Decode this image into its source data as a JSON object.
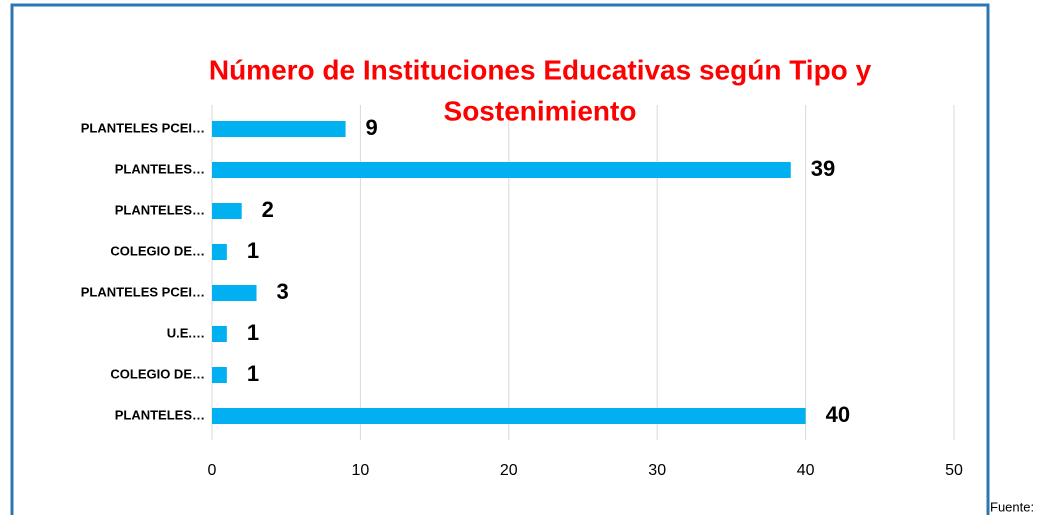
{
  "chart_data": {
    "type": "bar",
    "orientation": "horizontal",
    "title_lines": [
      "Número de Instituciones Educativas según Tipo y",
      "Sostenimiento"
    ],
    "categories": [
      "PLANTELES PCEI…",
      "PLANTELES…",
      "PLANTELES…",
      "COLEGIO DE…",
      "PLANTELES PCEI…",
      "U.E.…",
      "COLEGIO DE…",
      "PLANTELES…"
    ],
    "values": [
      9,
      39,
      2,
      1,
      3,
      1,
      1,
      40
    ],
    "color": "#00b0f0",
    "xlim": [
      0,
      50
    ],
    "xticks": [
      0,
      10,
      20,
      30,
      40,
      50
    ],
    "grid": true
  },
  "footer": "Fuente:"
}
